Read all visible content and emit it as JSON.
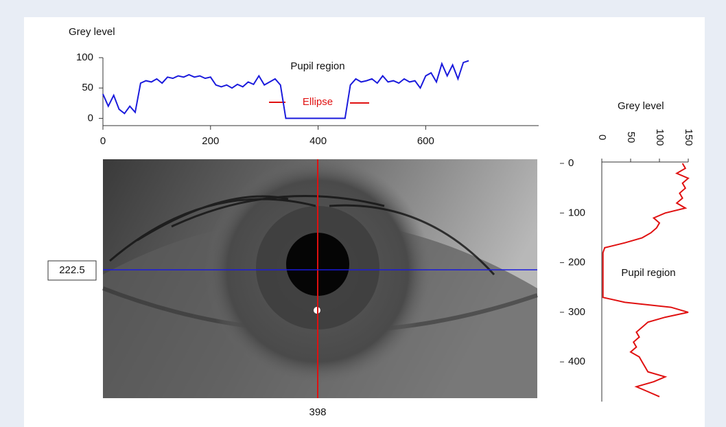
{
  "chart_data": [
    {
      "type": "line",
      "title": "Grey level",
      "x": [
        0,
        10,
        20,
        30,
        40,
        50,
        60,
        70,
        80,
        90,
        100,
        110,
        120,
        130,
        140,
        150,
        160,
        170,
        180,
        190,
        200,
        210,
        220,
        230,
        240,
        250,
        260,
        270,
        280,
        290,
        300,
        310,
        320,
        330,
        340,
        350,
        360,
        370,
        380,
        390,
        400,
        410,
        420,
        430,
        440,
        450,
        460,
        470,
        480,
        490,
        500,
        510,
        520,
        530,
        540,
        550,
        560,
        570,
        580,
        590,
        600,
        610,
        620,
        630,
        640,
        650,
        660,
        670,
        680
      ],
      "series": [
        {
          "color": "#1a1adc",
          "values": [
            40,
            20,
            38,
            15,
            8,
            20,
            10,
            58,
            62,
            60,
            65,
            58,
            68,
            66,
            70,
            68,
            72,
            68,
            70,
            66,
            68,
            55,
            52,
            55,
            50,
            56,
            52,
            60,
            56,
            70,
            55,
            60,
            65,
            55,
            0,
            0,
            0,
            0,
            0,
            0,
            0,
            0,
            0,
            0,
            0,
            0,
            55,
            65,
            60,
            62,
            65,
            58,
            70,
            60,
            62,
            58,
            65,
            60,
            62,
            50,
            70,
            75,
            60,
            90,
            70,
            88,
            65,
            92,
            95
          ]
        }
      ],
      "xlim": [
        0,
        810
      ],
      "xticks": [
        0,
        200,
        400,
        600
      ],
      "ylim": [
        -12,
        100
      ],
      "yticks": [
        0,
        50,
        100
      ],
      "annotations": [
        "Pupil region",
        "Ellipse"
      ]
    },
    {
      "type": "line",
      "orientation": "vertical",
      "title": "Grey level",
      "x": [
        0,
        10,
        20,
        30,
        40,
        50,
        60,
        70,
        80,
        90,
        100,
        110,
        120,
        130,
        140,
        150,
        160,
        170,
        180,
        190,
        200,
        210,
        220,
        230,
        240,
        250,
        260,
        270,
        280,
        290,
        300,
        310,
        320,
        330,
        340,
        350,
        360,
        370,
        380,
        390,
        400,
        410,
        420,
        430,
        440,
        450,
        460,
        470
      ],
      "series": [
        {
          "color": "#e01010",
          "values": [
            140,
            145,
            130,
            150,
            140,
            145,
            135,
            140,
            130,
            145,
            110,
            90,
            100,
            95,
            85,
            70,
            40,
            5,
            2,
            2,
            2,
            2,
            2,
            2,
            2,
            2,
            2,
            2,
            40,
            120,
            150,
            110,
            80,
            70,
            60,
            65,
            55,
            60,
            50,
            65,
            70,
            75,
            80,
            110,
            90,
            60,
            80,
            100
          ]
        }
      ],
      "xlim": [
        0,
        480
      ],
      "xticks": [
        0,
        100,
        200,
        300,
        400
      ],
      "ylim": [
        0,
        150
      ],
      "yticks": [
        0,
        50,
        100,
        150
      ],
      "annotations": [
        "Pupil region"
      ]
    }
  ],
  "image": {
    "crosshair_x": 398,
    "crosshair_y": 222.5
  }
}
